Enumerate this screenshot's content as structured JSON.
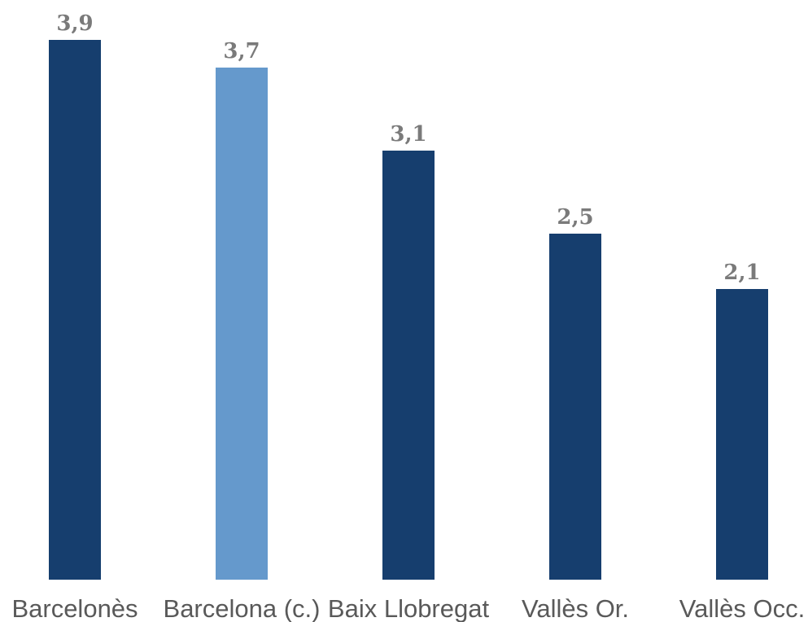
{
  "chart_data": {
    "type": "bar",
    "categories": [
      "Barcelonès",
      "Barcelona (c.)",
      "Baix Llobregat",
      "Vallès Or.",
      "Vallès Occ."
    ],
    "values": [
      3.9,
      3.7,
      3.1,
      2.5,
      2.1
    ],
    "value_labels": [
      "3,9",
      "3,7",
      "3,1",
      "2,5",
      "2,1"
    ],
    "colors": [
      "#163e6e",
      "#6599cc",
      "#163e6e",
      "#163e6e",
      "#163e6e"
    ],
    "title": "",
    "xlabel": "",
    "ylabel": "",
    "ylim": [
      0,
      4.0
    ],
    "grid": false,
    "legend": "none"
  }
}
